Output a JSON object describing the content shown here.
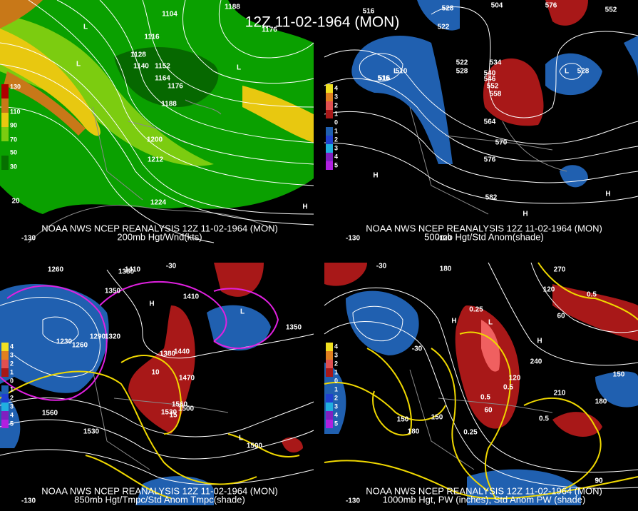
{
  "title": "12Z 11-02-1964 (MON)",
  "panels": [
    {
      "caption": "NOAA NWS NCEP REANALYSIS 12Z 11-02-1964 (MON)",
      "subtitle": "200mb Hgt/Wnd(kts)",
      "legend": [
        "130",
        "110",
        "90",
        "70",
        "50",
        "30"
      ],
      "labels": [
        "1104",
        "1116",
        "1128",
        "1140",
        "1152",
        "1164",
        "1176",
        "1188",
        "1200",
        "1212",
        "1224",
        "1188",
        "1176",
        "20",
        "L",
        "L",
        "L",
        "H"
      ],
      "axis": [
        "-130"
      ]
    },
    {
      "caption": "NOAA NWS NCEP REANALYSIS 12Z 11-02-1964 (MON)",
      "subtitle": "500mb Hgt/Std Anom(shade)",
      "legend": [
        "4",
        "3",
        "2",
        "1",
        "0",
        "1",
        "2",
        "3",
        "4",
        "5"
      ],
      "labels": [
        "516",
        "528",
        "504",
        "516",
        "522",
        "576",
        "552",
        "516",
        "510",
        "522",
        "528",
        "534",
        "540",
        "546",
        "552",
        "558",
        "564",
        "570",
        "576",
        "582",
        "528",
        "H",
        "H",
        "H",
        "L",
        "L"
      ],
      "axis": [
        "-130",
        "-120"
      ]
    },
    {
      "caption": "NOAA NWS NCEP REANALYSIS 12Z 11-02-1964 (MON)",
      "subtitle": "850mb Hgt/Tmpc/Std Anom Tmpc(shade)",
      "legend": [
        "4",
        "3",
        "2",
        "1",
        "0",
        "1",
        "2",
        "3",
        "4",
        "5"
      ],
      "labels": [
        "1260",
        "1410",
        "1380",
        "1350",
        "1290",
        "1320",
        "1260",
        "1230",
        "1410",
        "1440",
        "1470",
        "1500",
        "1530",
        "1560",
        "1560",
        "1530",
        "1500",
        "1350",
        "1380",
        "10",
        "15",
        "-30",
        "H",
        "L",
        "L"
      ],
      "axis": [
        "-130"
      ]
    },
    {
      "caption": "NOAA NWS NCEP REANALYSIS 12Z 11-02-1964 (MON)",
      "subtitle": "1000mb Hgt, PW (inches), Std Anom PW (shade)",
      "legend": [
        "4",
        "3",
        "2",
        "1",
        "0",
        "1",
        "2",
        "3",
        "4",
        "5"
      ],
      "labels": [
        "-30",
        "180",
        "150",
        "270",
        "120",
        "60",
        "-30",
        "90",
        "0.25",
        "0.5",
        "0.5",
        "0.25",
        "0.5",
        "120",
        "60",
        "150",
        "180",
        "210",
        "240",
        "150",
        "90",
        "180",
        "0.5",
        "H",
        "H",
        "L"
      ],
      "axis": [
        "-130"
      ]
    }
  ]
}
